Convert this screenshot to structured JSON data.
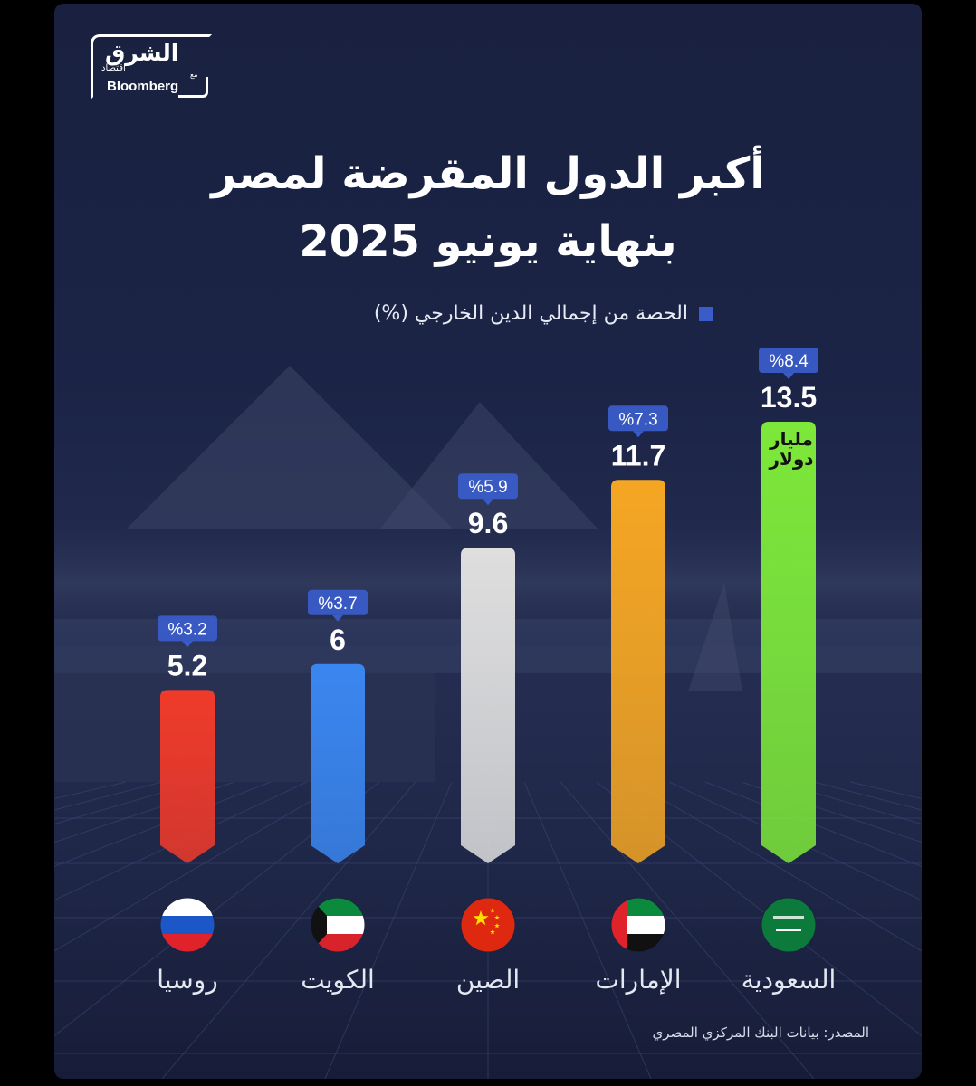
{
  "brand": {
    "name": "الشرق",
    "sub": "اقتصاد",
    "with": "مع",
    "partner": "Bloomberg"
  },
  "title_line1": "أكبر الدول المقرضة لمصر",
  "title_line2": "بنهاية يونيو 2025",
  "legend_label": "الحصة من إجمالي الدين الخارجي (%)",
  "colors": {
    "legend": "#3a5cc8",
    "badge": "#3a5cc8"
  },
  "source": "المصدر: بيانات البنك المركزي المصري",
  "chart_data": {
    "type": "bar",
    "categories": [
      "روسيا",
      "الكويت",
      "الصين",
      "الإمارات",
      "السعودية"
    ],
    "values": [
      5.2,
      6,
      9.6,
      11.7,
      13.5
    ],
    "value_labels": [
      "5.2",
      "6",
      "9.6",
      "11.7",
      "13.5"
    ],
    "share_labels": [
      "%3.2",
      "%3.7",
      "%5.9",
      "%7.3",
      "%8.4"
    ],
    "shares": [
      3.2,
      3.7,
      5.9,
      7.3,
      8.4
    ],
    "unit_label": "مليار دولار",
    "colors": [
      "#f03a2a",
      "#3a86f0",
      "#dedede",
      "#f5a623",
      "#7de83a"
    ],
    "flags": [
      "russia-flag",
      "kuwait-flag",
      "china-flag",
      "uae-flag",
      "saudi-flag"
    ],
    "ylim": [
      0,
      13.5
    ],
    "xlabel": "",
    "ylabel": ""
  }
}
